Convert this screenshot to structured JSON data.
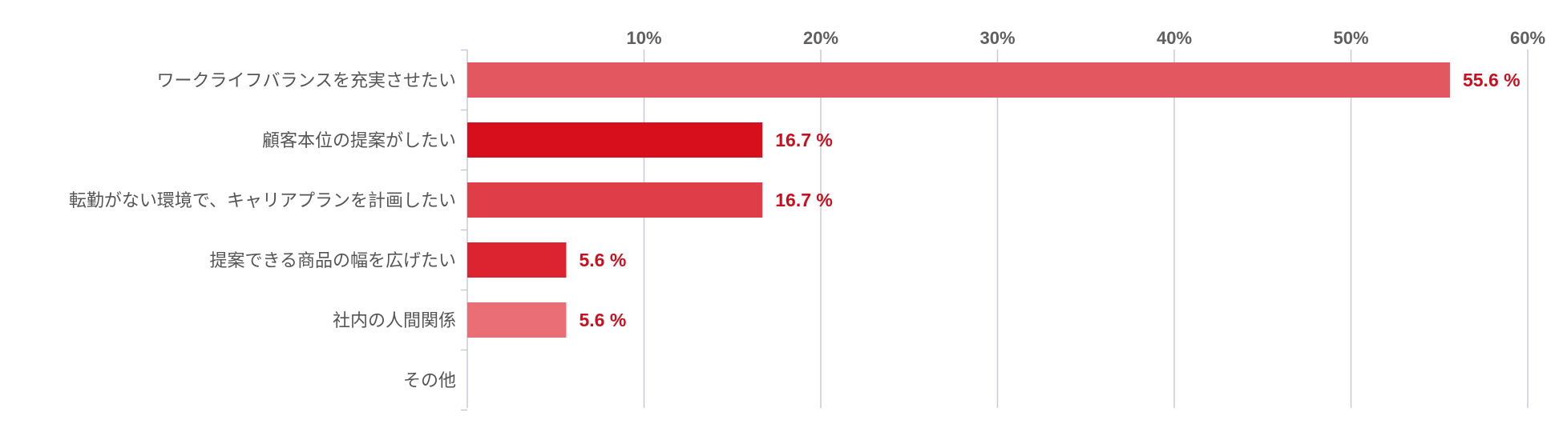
{
  "chart_data": {
    "type": "bar",
    "orientation": "horizontal",
    "categories": [
      "ワークライフバランスを充実させたい",
      "顧客本位の提案がしたい",
      "転勤がない環境で、キャリアプランを計画したい",
      "提案できる商品の幅を広げたい",
      "社内の人間関係",
      "その他"
    ],
    "values": [
      55.6,
      16.7,
      16.7,
      5.6,
      5.6,
      0
    ],
    "value_labels": [
      "55.6 %",
      "16.7 %",
      "16.7 %",
      "5.6 %",
      "5.6 %",
      ""
    ],
    "bar_colors": [
      "#e35760",
      "#d70f1d",
      "#df3d48",
      "#dc2431",
      "#e96e75",
      "#e35760"
    ],
    "xlim": [
      0,
      60
    ],
    "x_ticks": [
      10,
      20,
      30,
      40,
      50,
      60
    ],
    "x_tick_labels": [
      "10%",
      "20%",
      "30%",
      "40%",
      "50%",
      "60%"
    ],
    "x_axis_position": "top",
    "grid": true
  }
}
